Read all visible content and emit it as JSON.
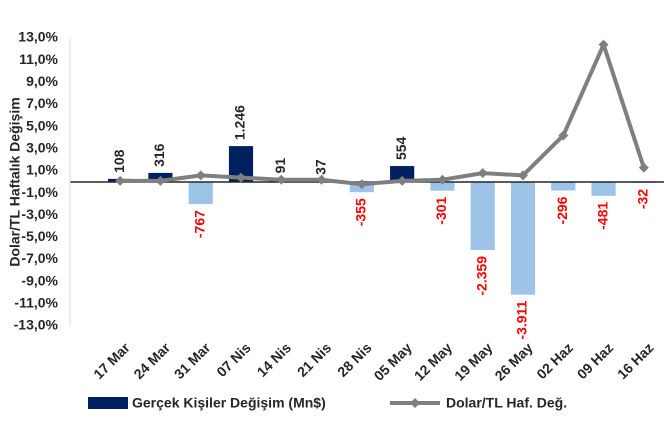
{
  "chart_data": {
    "type": "bar-line",
    "ylabel": "Dolar/TL Haftalık  Değişim",
    "categories": [
      "17 Mar",
      "24 Mar",
      "31 Mar",
      "07 Nis",
      "14 Nis",
      "21 Nis",
      "28 Nis",
      "05 May",
      "12 May",
      "19 May",
      "26 May",
      "02 Haz",
      "09 Haz",
      "16 Haz"
    ],
    "series": [
      {
        "name": "Gerçek Kişiler Değişim (Mn$)",
        "type": "bar",
        "axis": "y2",
        "color": "#002060",
        "negative_color": "#9dc3e6",
        "label_color": "#262626",
        "negative_label_color": "#ff0000",
        "values": [
          108,
          316,
          -767,
          1246,
          91,
          37,
          -355,
          554,
          -301,
          -2359,
          -3911,
          -296,
          -481,
          -32
        ],
        "value_labels": [
          "108",
          "316",
          "-767",
          "1.246",
          "91",
          "37",
          "-355",
          "554",
          "-301",
          "-2.359",
          "-3.911",
          "-296",
          "-481",
          "-32"
        ]
      },
      {
        "name": "Dolar/TL Haf. Değ.",
        "type": "line",
        "color": "#7f7f7f",
        "values": [
          0.1,
          0.1,
          0.6,
          0.4,
          0.2,
          0.2,
          -0.2,
          0.1,
          0.2,
          0.8,
          0.6,
          4.2,
          12.4,
          1.3
        ]
      }
    ],
    "ylim": [
      -13,
      13
    ],
    "yticks": [
      {
        "value": 13,
        "label": "13,0%"
      },
      {
        "value": 11,
        "label": "11,0%"
      },
      {
        "value": 9,
        "label": "9,0%"
      },
      {
        "value": 7,
        "label": "7,0%"
      },
      {
        "value": 5,
        "label": "5,0%"
      },
      {
        "value": 3,
        "label": "3,0%"
      },
      {
        "value": 1,
        "label": "1,0%"
      },
      {
        "value": -1,
        "label": "-1,0%"
      },
      {
        "value": -3,
        "label": "-3,0%"
      },
      {
        "value": -5,
        "label": "-5,0%"
      },
      {
        "value": -7,
        "label": "-7,0%"
      },
      {
        "value": -9,
        "label": "-9,0%"
      },
      {
        "value": -11,
        "label": "-11,0%"
      },
      {
        "value": -13,
        "label": "-13,0%"
      }
    ],
    "y2lim": [
      -5000,
      5000
    ]
  }
}
